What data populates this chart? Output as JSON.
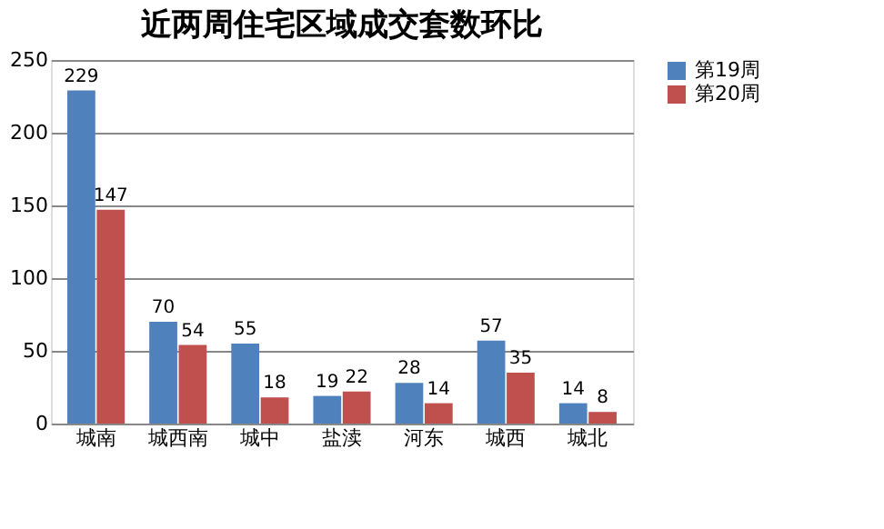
{
  "chart_data": {
    "type": "bar",
    "title": "近两周住宅区域成交套数环比",
    "categories": [
      "城南",
      "城西南",
      "城中",
      "盐渎",
      "河东",
      "城西",
      "城北"
    ],
    "series": [
      {
        "name": "第19周",
        "color": "#4f81bd",
        "values": [
          229,
          70,
          55,
          19,
          28,
          57,
          14
        ]
      },
      {
        "name": "第20周",
        "color": "#c0504d",
        "values": [
          147,
          54,
          18,
          22,
          14,
          35,
          8
        ]
      }
    ],
    "ylim": [
      0,
      250
    ],
    "yticks": [
      0,
      50,
      100,
      150,
      200,
      250
    ],
    "grid": "y",
    "legend": "right",
    "data_labels": true
  }
}
